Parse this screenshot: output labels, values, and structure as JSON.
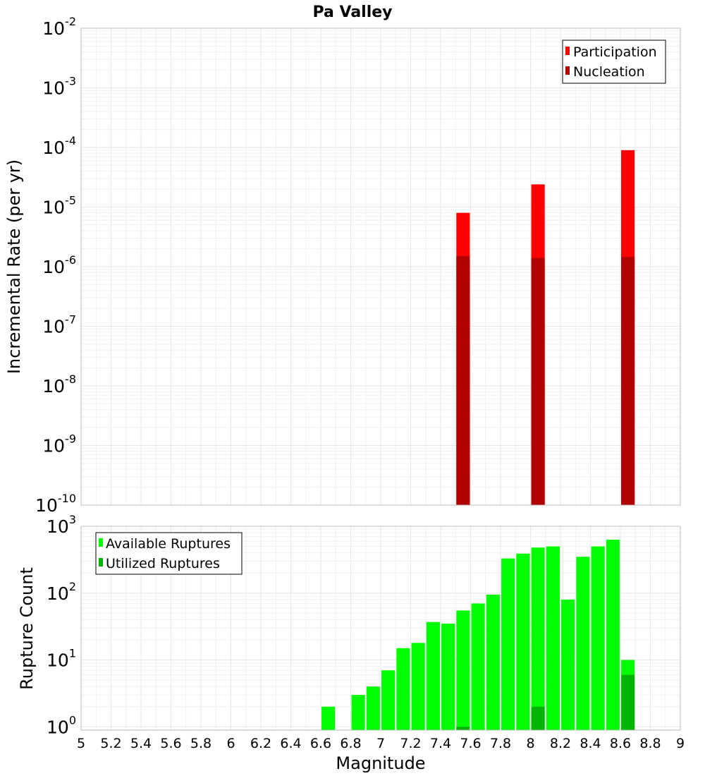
{
  "chart_data": [
    {
      "type": "bar",
      "title": "Pa Valley",
      "ylabel": "Incremental Rate (per yr)",
      "xlabel": "",
      "xlim": [
        5,
        9
      ],
      "ylim": [
        1e-10,
        0.01
      ],
      "yscale": "log",
      "grid": true,
      "legend_position": "top-right",
      "series": [
        {
          "name": "Participation",
          "color": "#ff0000",
          "x": [
            7.55,
            8.05,
            8.65
          ],
          "values": [
            8e-06,
            2.4e-05,
            9e-05
          ]
        },
        {
          "name": "Nucleation",
          "color": "#b00000",
          "x": [
            7.55,
            8.05,
            8.65
          ],
          "values": [
            1.5e-06,
            1.4e-06,
            1.45e-06
          ]
        }
      ]
    },
    {
      "type": "bar",
      "title": "",
      "ylabel": "Rupture Count",
      "xlabel": "Magnitude",
      "xlim": [
        5,
        9
      ],
      "ylim": [
        1,
        1000
      ],
      "yscale": "log",
      "grid": true,
      "legend_position": "top-left",
      "series": [
        {
          "name": "Available Ruptures",
          "color": "#00ff00",
          "x": [
            6.65,
            6.85,
            6.95,
            7.05,
            7.15,
            7.25,
            7.35,
            7.45,
            7.55,
            7.65,
            7.75,
            7.85,
            7.95,
            8.05,
            8.15,
            8.25,
            8.35,
            8.45,
            8.55,
            8.65
          ],
          "values": [
            2,
            3,
            4,
            7,
            15,
            18,
            37,
            35,
            55,
            70,
            95,
            330,
            390,
            480,
            500,
            80,
            350,
            500,
            630,
            10
          ]
        },
        {
          "name": "Utilized Ruptures",
          "color": "#00b400",
          "x": [
            7.55,
            8.05,
            8.65
          ],
          "values": [
            1,
            2,
            6
          ]
        }
      ]
    }
  ],
  "x_ticks": [
    "5",
    "5.2",
    "5.4",
    "5.6",
    "5.8",
    "6",
    "6.2",
    "6.4",
    "6.6",
    "6.8",
    "7",
    "7.2",
    "7.4",
    "7.6",
    "7.8",
    "8",
    "8.2",
    "8.4",
    "8.6",
    "8.8",
    "9"
  ],
  "top_y_ticks": [
    {
      "base": "10",
      "exp": "-2"
    },
    {
      "base": "10",
      "exp": "-3"
    },
    {
      "base": "10",
      "exp": "-4"
    },
    {
      "base": "10",
      "exp": "-5"
    },
    {
      "base": "10",
      "exp": "-6"
    },
    {
      "base": "10",
      "exp": "-7"
    },
    {
      "base": "10",
      "exp": "-8"
    },
    {
      "base": "10",
      "exp": "-9"
    },
    {
      "base": "10",
      "exp": "-10"
    }
  ],
  "bottom_y_ticks": [
    {
      "base": "10",
      "exp": "3"
    },
    {
      "base": "10",
      "exp": "2"
    },
    {
      "base": "10",
      "exp": "1"
    },
    {
      "base": "10",
      "exp": "0"
    }
  ]
}
